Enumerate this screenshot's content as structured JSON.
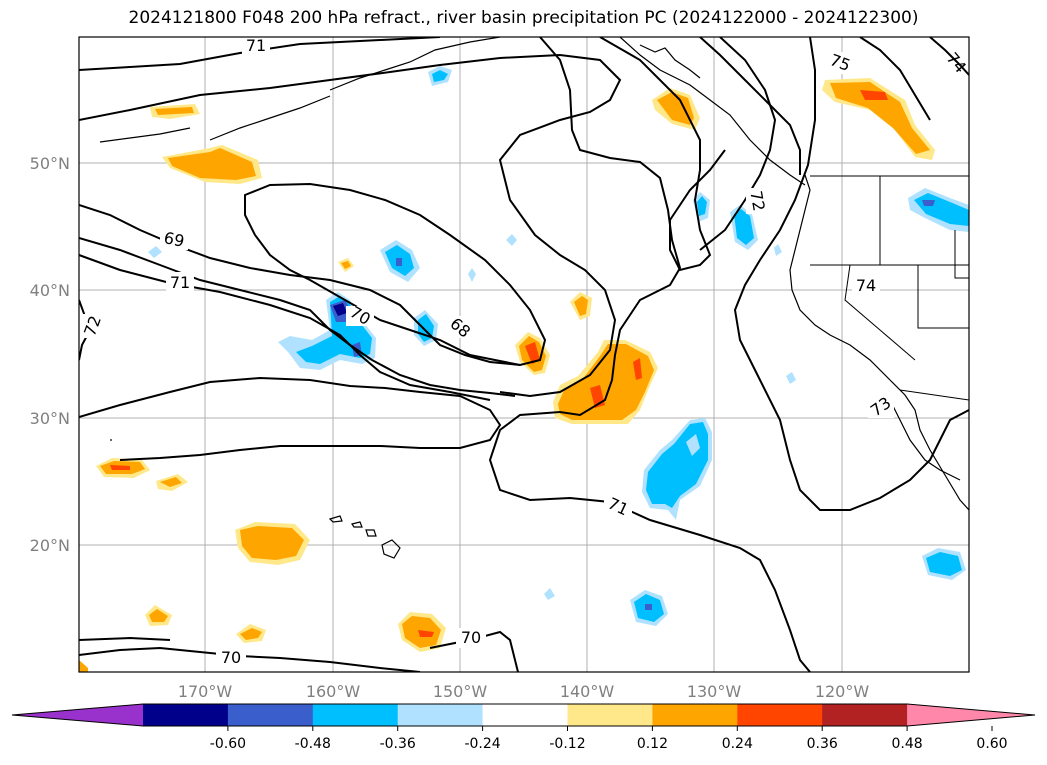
{
  "title": "2024121800 F048 200 hPa refract., river basin precipitation PC (2024122000 - 2024122300)",
  "lat_labels": [
    "50°N",
    "40°N",
    "30°N",
    "20°N"
  ],
  "lon_labels": [
    "170°W",
    "160°W",
    "150°W",
    "140°W",
    "130°W",
    "120°W"
  ],
  "colorbar": {
    "colors": [
      "#9932cc",
      "#00008b",
      "#3a5fcd",
      "#00bfff",
      "#b0e2ff",
      "#ffffff",
      "#ffe88a",
      "#ffa500",
      "#ff4500",
      "#b22222",
      "#ff88aa"
    ],
    "ticks": [
      "-0.60",
      "-0.48",
      "-0.36",
      "-0.24",
      "-0.12",
      "0.12",
      "0.24",
      "0.36",
      "0.48",
      "0.60"
    ]
  },
  "contour_labels": [
    "71",
    "75",
    "74",
    "69",
    "71",
    "72",
    "70",
    "68",
    "72",
    "74",
    "73",
    "71",
    "70",
    "70"
  ]
}
